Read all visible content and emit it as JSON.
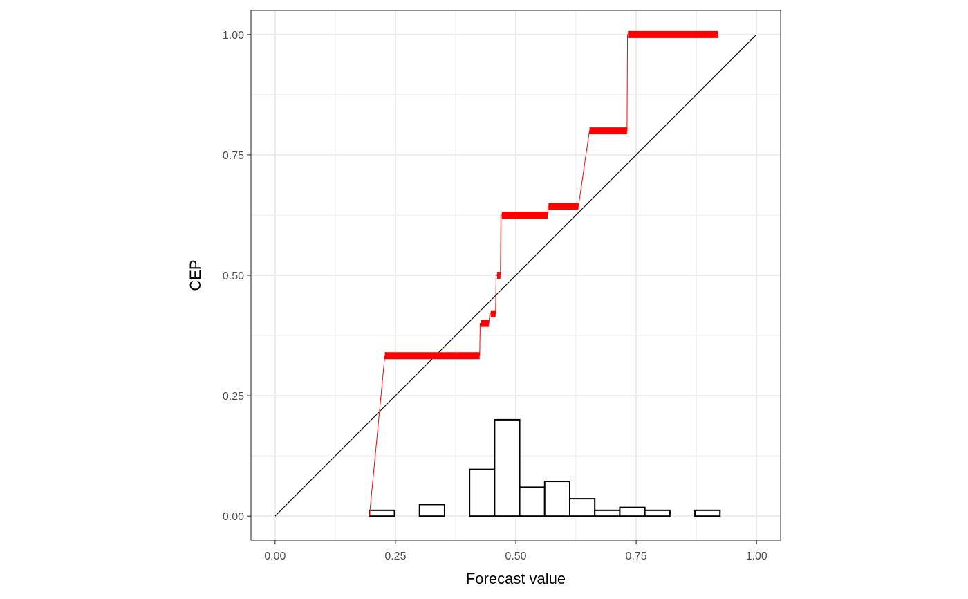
{
  "chart_data": {
    "type": "line",
    "title": "",
    "xlabel": "Forecast value",
    "ylabel": "CEP",
    "xlim": [
      -0.05,
      1.05
    ],
    "ylim": [
      -0.05,
      1.05
    ],
    "x_ticks": [
      0.0,
      0.25,
      0.5,
      0.75,
      1.0
    ],
    "x_tick_labels": [
      "0.00",
      "0.25",
      "0.50",
      "0.75",
      "1.00"
    ],
    "y_ticks": [
      0.0,
      0.25,
      0.5,
      0.75,
      1.0
    ],
    "y_tick_labels": [
      "0.00",
      "0.25",
      "0.50",
      "0.75",
      "1.00"
    ],
    "grid": true,
    "legend": "none",
    "colors": {
      "cep": "#ff0000",
      "diagonal": "#000000",
      "grid": "#ebebeb",
      "panel_border": "#333333"
    },
    "diagonal": {
      "x": [
        0,
        1
      ],
      "y": [
        0,
        1
      ]
    },
    "cep_steps": [
      {
        "x_start": 0.228,
        "x_end": 0.425,
        "y": 0.333
      },
      {
        "x_start": 0.428,
        "x_end": 0.444,
        "y": 0.4
      },
      {
        "x_start": 0.448,
        "x_end": 0.458,
        "y": 0.42
      },
      {
        "x_start": 0.461,
        "x_end": 0.468,
        "y": 0.5
      },
      {
        "x_start": 0.471,
        "x_end": 0.566,
        "y": 0.625
      },
      {
        "x_start": 0.568,
        "x_end": 0.63,
        "y": 0.643
      },
      {
        "x_start": 0.653,
        "x_end": 0.731,
        "y": 0.8
      },
      {
        "x_start": 0.733,
        "x_end": 0.92,
        "y": 1.0
      }
    ],
    "cep_line": {
      "x": [
        0.196,
        0.228,
        0.425,
        0.426,
        0.428,
        0.444,
        0.446,
        0.448,
        0.458,
        0.459,
        0.461,
        0.468,
        0.469,
        0.471,
        0.566,
        0.567,
        0.568,
        0.63,
        0.653,
        0.731,
        0.732,
        0.733,
        0.92
      ],
      "y": [
        0.0,
        0.333,
        0.333,
        0.4,
        0.4,
        0.4,
        0.42,
        0.42,
        0.42,
        0.5,
        0.5,
        0.5,
        0.625,
        0.625,
        0.625,
        0.643,
        0.643,
        0.643,
        0.8,
        0.8,
        1.0,
        1.0,
        1.0
      ]
    },
    "histogram": {
      "bin_edges": [
        0.196,
        0.248,
        0.3,
        0.352,
        0.404,
        0.456,
        0.508,
        0.56,
        0.612,
        0.664,
        0.716,
        0.768,
        0.82,
        0.872,
        0.924
      ],
      "heights": [
        0.012,
        0.0,
        0.024,
        0.0,
        0.097,
        0.2,
        0.06,
        0.072,
        0.036,
        0.012,
        0.018,
        0.012,
        0.0,
        0.012
      ]
    }
  }
}
